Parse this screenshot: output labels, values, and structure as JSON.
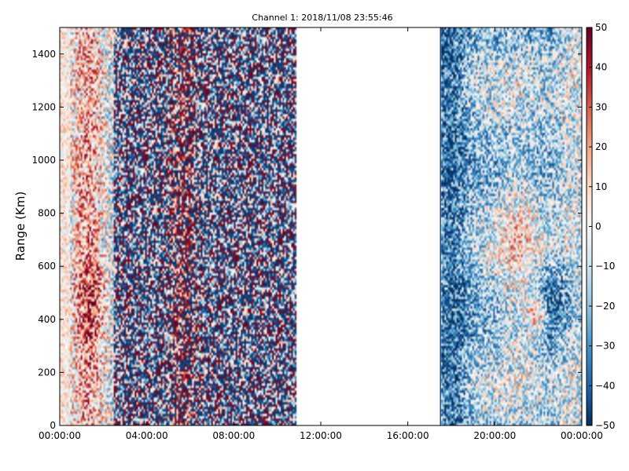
{
  "chart_data": {
    "type": "heatmap",
    "title": "Channel 1: 2018/11/08 23:55:46",
    "ylabel": "Range (Km)",
    "xlabel": "",
    "x_ticks": [
      "00:00:00",
      "04:00:00",
      "08:00:00",
      "12:00:00",
      "16:00:00",
      "20:00:00",
      "00:00:00"
    ],
    "x_range_hours": [
      0,
      24
    ],
    "y_ticks": [
      "0",
      "200",
      "400",
      "600",
      "800",
      "1000",
      "1200",
      "1400"
    ],
    "y_range": [
      0,
      1500
    ],
    "colorbar": {
      "ticks": [
        "50",
        "40",
        "30",
        "20",
        "10",
        "0",
        "−10",
        "−20",
        "−30",
        "−40",
        "−50"
      ],
      "range": [
        -50,
        50
      ],
      "colormap": "RdBu_r"
    },
    "data_gaps_hours": [
      [
        10.85,
        17.5
      ]
    ],
    "grid": false,
    "colors": {
      "negative_end": "#053061",
      "neutral": "#f7f7f7",
      "positive_end": "#67001f"
    }
  }
}
